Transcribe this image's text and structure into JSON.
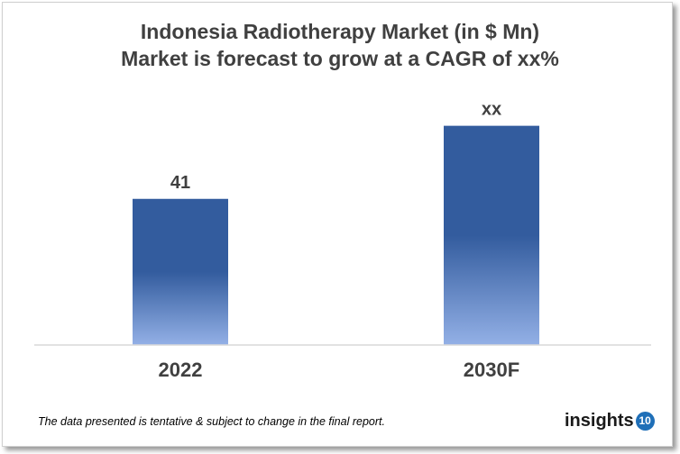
{
  "chart_data": {
    "type": "bar",
    "title": "Indonesia Radiotherapy Market (in $ Mn)",
    "subtitle": "Market is forecast to grow at a CAGR of xx%",
    "categories": [
      "2022",
      "2030F"
    ],
    "values": [
      41,
      61.5
    ],
    "data_labels": [
      "41",
      "xx"
    ],
    "ylim": [
      0,
      70
    ],
    "grid": false,
    "colors": {
      "bar_top": "#335c9e",
      "bar_bottom": "#93b0e6",
      "text": "#404040"
    }
  },
  "footer": {
    "note": "The data presented is tentative & subject to change in the final report.",
    "logo_text": "insights",
    "logo_badge": "10"
  }
}
